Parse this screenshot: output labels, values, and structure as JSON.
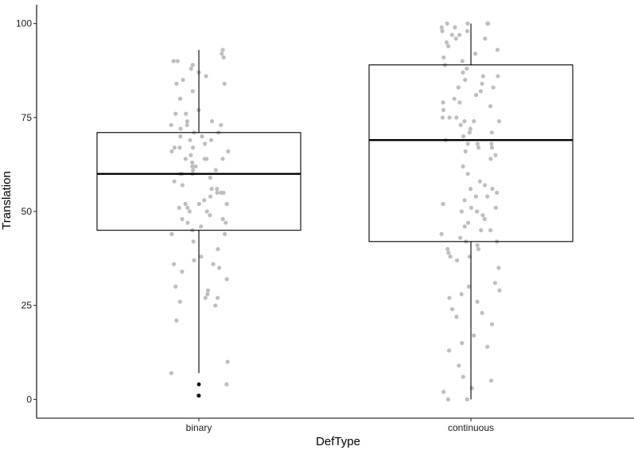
{
  "chart_data": {
    "type": "box",
    "xlabel": "DefType",
    "ylabel": "Translation",
    "categories": [
      "binary",
      "continuous"
    ],
    "ylim": [
      -5,
      105
    ],
    "yticks": [
      0,
      25,
      50,
      75,
      100
    ],
    "grid": false,
    "legend": "none",
    "colors": {
      "jitter": "#bebebe",
      "outlier": "#000000",
      "box": "#000000"
    },
    "boxes": [
      {
        "category": "binary",
        "q1": 45,
        "median": 60,
        "q3": 71,
        "whisker_low": 7,
        "whisker_high": 93,
        "outliers": [
          4,
          1
        ]
      },
      {
        "category": "continuous",
        "q1": 42,
        "median": 69,
        "q3": 89,
        "whisker_low": 0,
        "whisker_high": 100,
        "outliers": []
      }
    ],
    "points": [
      {
        "category": "binary",
        "values": [
          92,
          91,
          90,
          89,
          93,
          90,
          88,
          87,
          86,
          85,
          84,
          84,
          82,
          80,
          77,
          76,
          76,
          74,
          74,
          73,
          73,
          73,
          72,
          71,
          71,
          70,
          70,
          69,
          69,
          68,
          67,
          67,
          67,
          66,
          66,
          65,
          64,
          64,
          64,
          64,
          63,
          62,
          62,
          61,
          61,
          60,
          60,
          60,
          59,
          58,
          57,
          56,
          56,
          55,
          55,
          55,
          54,
          53,
          52,
          52,
          52,
          51,
          51,
          50,
          50,
          49,
          48,
          48,
          47,
          47,
          46,
          45,
          44,
          44,
          42,
          40,
          38,
          37,
          36,
          36,
          35,
          34,
          32,
          30,
          29,
          28,
          27,
          27,
          26,
          25,
          21,
          10,
          7,
          4,
          1
        ]
      },
      {
        "category": "continuous",
        "values": [
          100,
          100,
          100,
          100,
          99,
          99,
          98,
          98,
          97,
          97,
          96,
          96,
          95,
          94,
          93,
          92,
          91,
          90,
          89,
          88,
          87,
          86,
          86,
          85,
          84,
          83,
          83,
          82,
          81,
          80,
          79,
          79,
          78,
          77,
          75,
          75,
          75,
          74,
          74,
          74,
          73,
          72,
          71,
          71,
          70,
          69,
          68,
          68,
          68,
          67,
          67,
          66,
          65,
          64,
          62,
          60,
          58,
          57,
          56,
          56,
          55,
          54,
          54,
          53,
          52,
          51,
          51,
          50,
          50,
          49,
          48,
          47,
          46,
          45,
          45,
          44,
          43,
          42,
          42,
          41,
          40,
          40,
          39,
          38,
          38,
          37,
          35,
          31,
          30,
          29,
          28,
          27,
          26,
          24,
          23,
          22,
          20,
          17,
          15,
          14,
          13,
          9,
          6,
          5,
          3,
          2,
          0,
          0
        ]
      }
    ]
  }
}
